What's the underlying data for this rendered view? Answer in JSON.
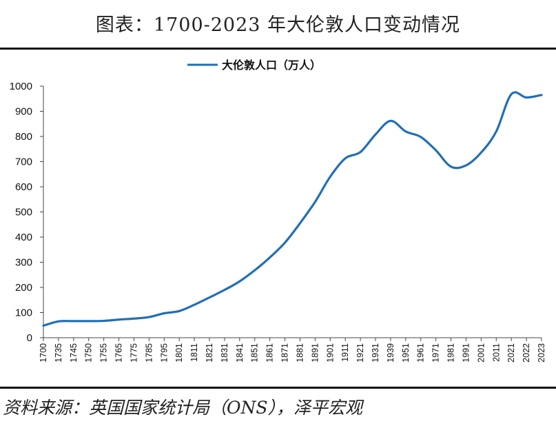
{
  "page": {
    "title": "图表：1700-2023 年大伦敦人口变动情况",
    "source": "资料来源：英国国家统计局（ONS），泽平宏观"
  },
  "chart_data": {
    "type": "line",
    "title": "",
    "xlabel": "",
    "ylabel": "",
    "ylim": [
      0,
      1000
    ],
    "yticks": [
      0,
      100,
      200,
      300,
      400,
      500,
      600,
      700,
      800,
      900,
      1000
    ],
    "grid": false,
    "legend_position": "top-center",
    "categories": [
      "1700",
      "1735",
      "1745",
      "1750",
      "1755",
      "1765",
      "1775",
      "1785",
      "1795",
      "1801",
      "1811",
      "1821",
      "1831",
      "1841",
      "1851",
      "1861",
      "1871",
      "1881",
      "1891",
      "1901",
      "1911",
      "1921",
      "1931",
      "1939",
      "1951",
      "1961",
      "1971",
      "1981",
      "1991",
      "2001",
      "2011",
      "2021",
      "2022",
      "2023"
    ],
    "series": [
      {
        "name": "大伦敦人口（万人）",
        "color": "#1f6fb8",
        "values": [
          48,
          65,
          66,
          66,
          67,
          72,
          76,
          82,
          97,
          106,
          131,
          160,
          190,
          224,
          268,
          319,
          378,
          455,
          540,
          640,
          713,
          738,
          808,
          862,
          820,
          798,
          745,
          680,
          685,
          736,
          820,
          968,
          955,
          965
        ]
      }
    ]
  }
}
